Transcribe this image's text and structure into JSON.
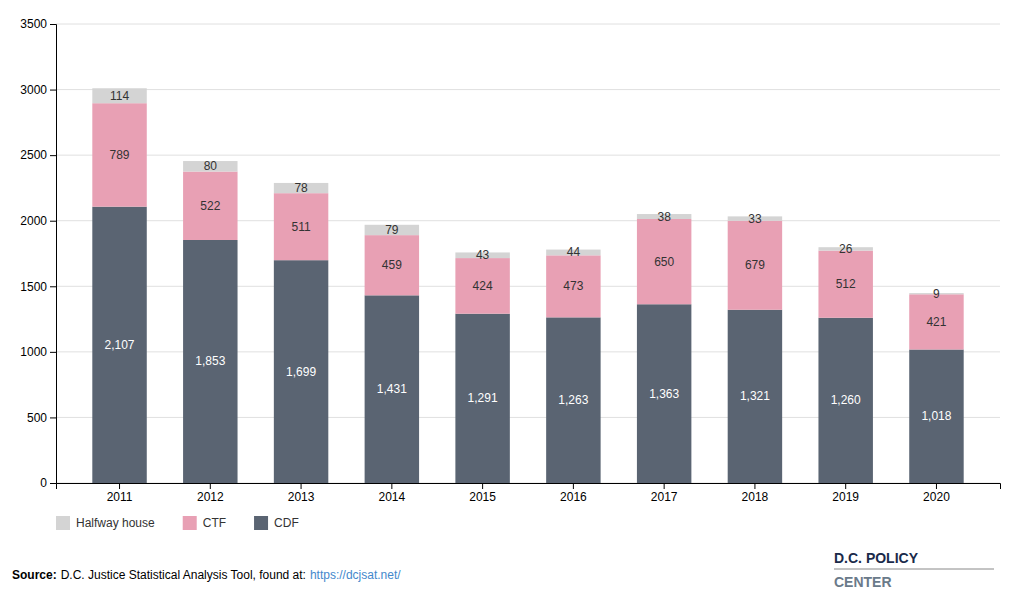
{
  "chart_data": {
    "type": "bar",
    "stacked": true,
    "categories": [
      "2011",
      "2012",
      "2013",
      "2014",
      "2015",
      "2016",
      "2017",
      "2018",
      "2019",
      "2020"
    ],
    "series": [
      {
        "name": "CDF",
        "color": "#5a6472",
        "values": [
          2107,
          1853,
          1699,
          1431,
          1291,
          1263,
          1363,
          1321,
          1260,
          1018
        ],
        "value_labels": [
          "2,107",
          "1,853",
          "1,699",
          "1,431",
          "1,291",
          "1,263",
          "1,363",
          "1,321",
          "1,260",
          "1,018"
        ]
      },
      {
        "name": "CTF",
        "color": "#e8a0b4",
        "values": [
          789,
          522,
          511,
          459,
          424,
          473,
          650,
          679,
          512,
          421
        ]
      },
      {
        "name": "Halfway house",
        "color": "#d4d4d4",
        "values": [
          114,
          80,
          78,
          79,
          43,
          44,
          38,
          33,
          26,
          9
        ]
      }
    ],
    "ylim": [
      0,
      3500
    ],
    "yticks": [
      0,
      500,
      1000,
      1500,
      2000,
      2500,
      3000,
      3500
    ],
    "grid": true,
    "legend": "bottom",
    "data_labels": true,
    "annotations": [
      "Source:",
      "D.C. Justice Statistical Analysis Tool, found at:",
      "https://dcjsat.net/",
      "D.C. POLICY",
      "CENTER"
    ]
  }
}
